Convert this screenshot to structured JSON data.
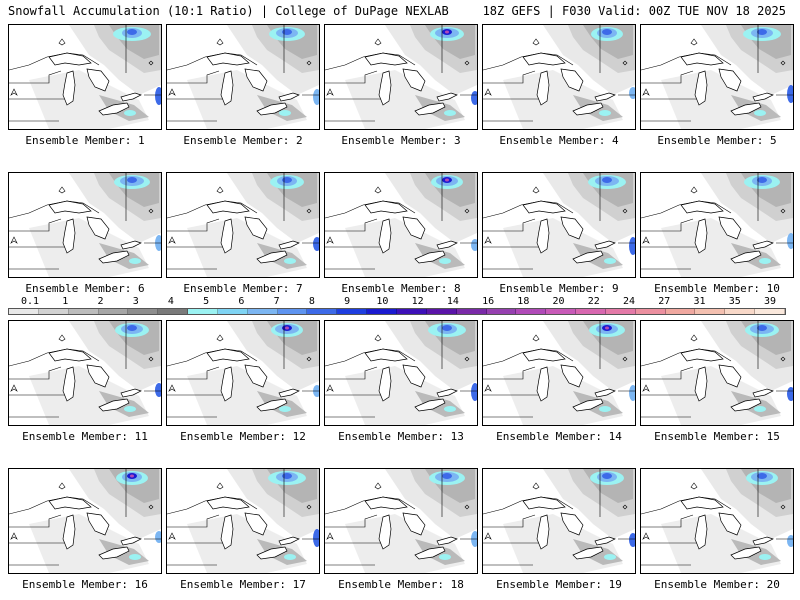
{
  "header": {
    "left_title": "Snowfall Accumulation (10:1 Ratio) | College of DuPage NEXLAB",
    "right_title": "18Z GEFS | F030 Valid: 00Z TUE NOV 18 2025"
  },
  "panel_label_prefix": "Ensemble Member: ",
  "members": [
    {
      "id": 1,
      "label": "Ensemble Member: 1"
    },
    {
      "id": 2,
      "label": "Ensemble Member: 2"
    },
    {
      "id": 3,
      "label": "Ensemble Member: 3"
    },
    {
      "id": 4,
      "label": "Ensemble Member: 4"
    },
    {
      "id": 5,
      "label": "Ensemble Member: 5"
    },
    {
      "id": 6,
      "label": "Ensemble Member: 6"
    },
    {
      "id": 7,
      "label": "Ensemble Member: 7"
    },
    {
      "id": 8,
      "label": "Ensemble Member: 8"
    },
    {
      "id": 9,
      "label": "Ensemble Member: 9"
    },
    {
      "id": 10,
      "label": "Ensemble Member: 10"
    },
    {
      "id": 11,
      "label": "Ensemble Member: 11"
    },
    {
      "id": 12,
      "label": "Ensemble Member: 12"
    },
    {
      "id": 13,
      "label": "Ensemble Member: 13"
    },
    {
      "id": 14,
      "label": "Ensemble Member: 14"
    },
    {
      "id": 15,
      "label": "Ensemble Member: 15"
    },
    {
      "id": 16,
      "label": "Ensemble Member: 16"
    },
    {
      "id": 17,
      "label": "Ensemble Member: 17"
    },
    {
      "id": 18,
      "label": "Ensemble Member: 18"
    },
    {
      "id": 19,
      "label": "Ensemble Member: 19"
    },
    {
      "id": 20,
      "label": "Ensemble Member: 20"
    }
  ],
  "legend": {
    "ticks": [
      "0.1",
      "1",
      "2",
      "3",
      "4",
      "5",
      "6",
      "7",
      "8",
      "9",
      "10",
      "12",
      "14",
      "16",
      "18",
      "20",
      "22",
      "24",
      "27",
      "31",
      "35",
      "39"
    ],
    "colors": [
      "#e8e8e8",
      "#d2d2d2",
      "#bcbcbc",
      "#a6a6a6",
      "#8e8e8e",
      "#7a7a7a",
      "#9bf2f2",
      "#7fd4f4",
      "#7cb6f2",
      "#5e94f0",
      "#3d6ae8",
      "#1e3ee0",
      "#1a1ad0",
      "#3d10b8",
      "#5a14a8",
      "#7a2aa8",
      "#9640b0",
      "#b04ab8",
      "#c85ab8",
      "#d868b0",
      "#e47aa8",
      "#ec90a0",
      "#f0a8a0",
      "#f4c0b0",
      "#f8d8c8",
      "#fae8dc"
    ]
  }
}
